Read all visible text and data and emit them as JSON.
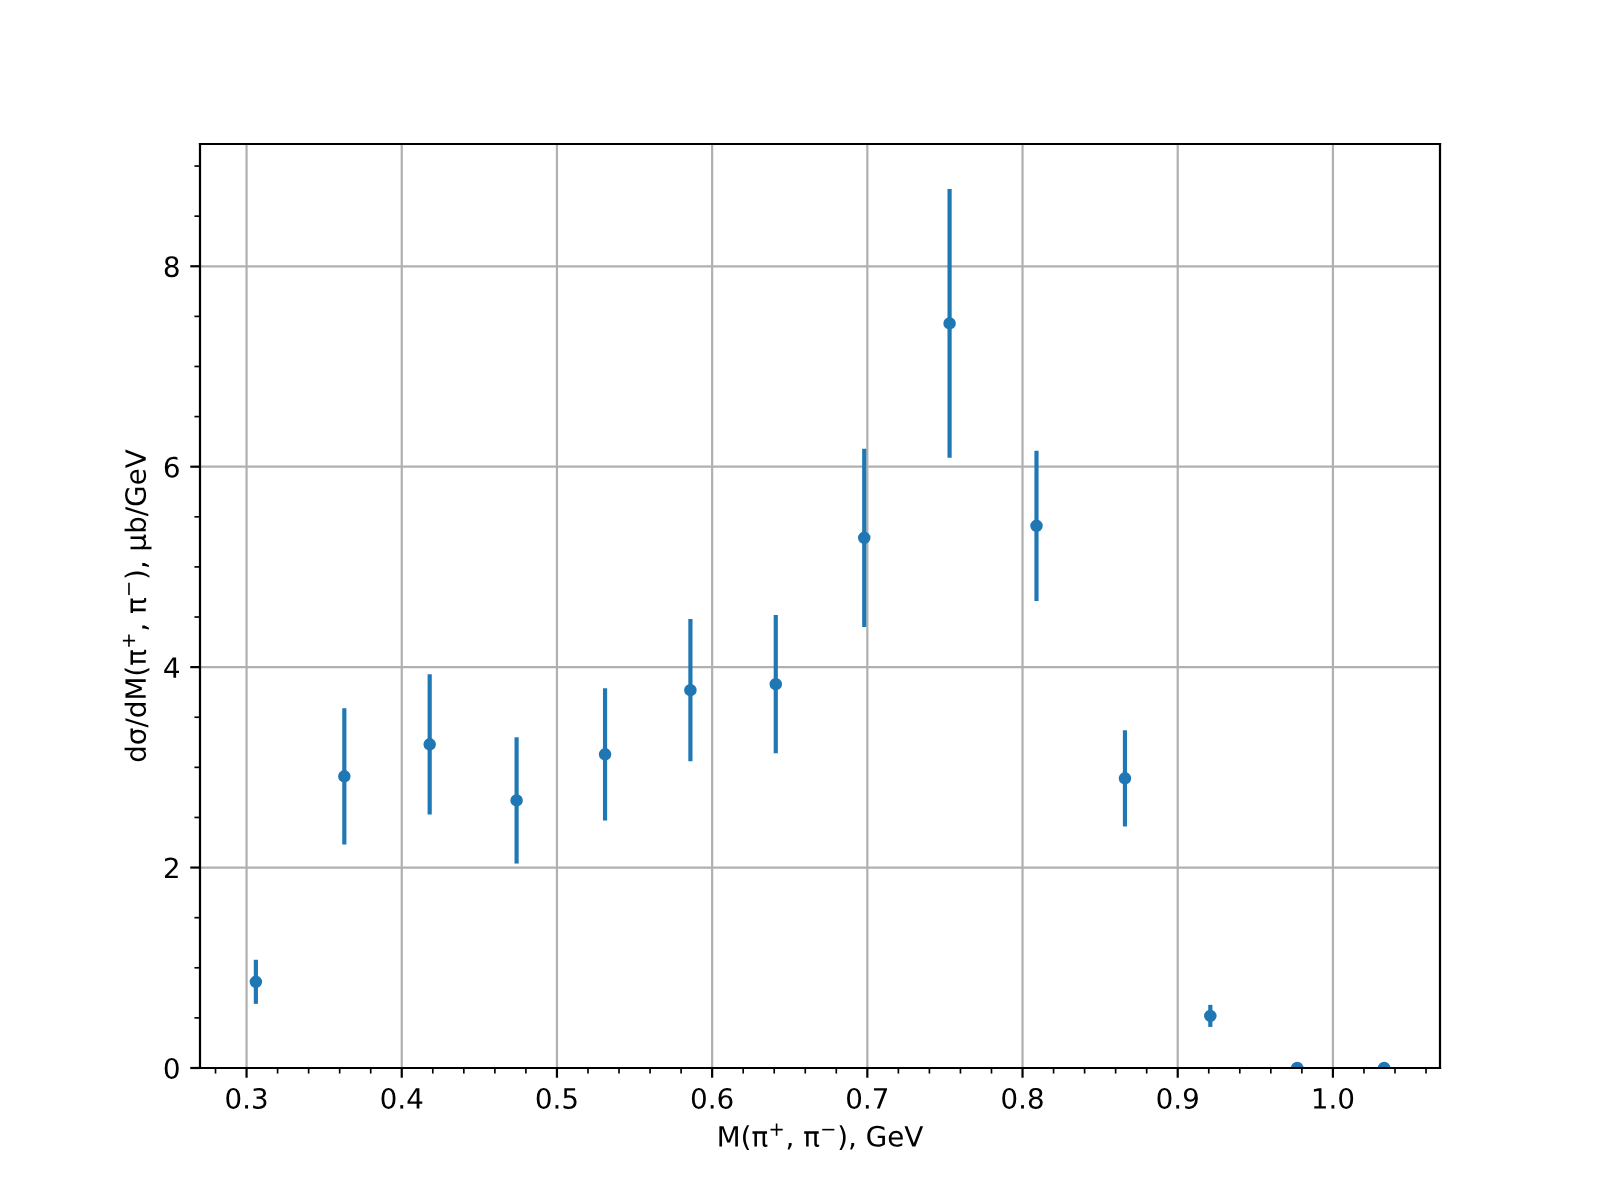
{
  "chart_data": {
    "type": "scatter",
    "xlabel": "M(π$^{+}$, π$^{−}$), GeV",
    "ylabel": "dσ/dM(π$^{+}$, π$^{−}$), μb/GeV",
    "x": [
      0.306,
      0.363,
      0.418,
      0.474,
      0.531,
      0.586,
      0.641,
      0.698,
      0.753,
      0.809,
      0.866,
      0.921,
      0.977,
      1.033
    ],
    "series": [
      {
        "color": "#1f77b4",
        "values": [
          0.86,
          2.91,
          3.23,
          2.67,
          3.13,
          3.77,
          3.83,
          5.29,
          7.43,
          5.41,
          2.89,
          0.52,
          0.0,
          0.0
        ],
        "errors": [
          0.22,
          0.68,
          0.7,
          0.63,
          0.66,
          0.71,
          0.69,
          0.89,
          1.34,
          0.75,
          0.48,
          0.11,
          0.0,
          0.0
        ]
      }
    ],
    "marker": "circle",
    "grid": true,
    "xlim": [
      0.27,
      1.069
    ],
    "ylim": [
      0,
      9.22
    ],
    "xticks": [
      {
        "value": 0.28,
        "label": null
      },
      0.3,
      {
        "value": 0.32,
        "label": null
      },
      {
        "value": 0.34,
        "label": null
      },
      {
        "value": 0.36,
        "label": null
      },
      {
        "value": 0.38,
        "label": null
      },
      0.4,
      {
        "value": 0.42,
        "label": null
      },
      {
        "value": 0.44,
        "label": null
      },
      {
        "value": 0.46,
        "label": null
      },
      {
        "value": 0.48,
        "label": null
      },
      0.5,
      {
        "value": 0.52,
        "label": null
      },
      {
        "value": 0.54,
        "label": null
      },
      {
        "value": 0.56,
        "label": null
      },
      {
        "value": 0.58,
        "label": null
      },
      0.6,
      {
        "value": 0.62,
        "label": null
      },
      {
        "value": 0.64,
        "label": null
      },
      {
        "value": 0.66,
        "label": null
      },
      {
        "value": 0.68,
        "label": null
      },
      0.7,
      {
        "value": 0.72,
        "label": null
      },
      {
        "value": 0.74,
        "label": null
      },
      {
        "value": 0.76,
        "label": null
      },
      {
        "value": 0.78,
        "label": null
      },
      0.8,
      {
        "value": 0.82,
        "label": null
      },
      {
        "value": 0.84,
        "label": null
      },
      {
        "value": 0.86,
        "label": null
      },
      {
        "value": 0.88,
        "label": null
      },
      0.9,
      {
        "value": 0.92,
        "label": null
      },
      {
        "value": 0.94,
        "label": null
      },
      {
        "value": 0.96,
        "label": null
      },
      {
        "value": 0.98,
        "label": null
      },
      {
        "value": 1.0,
        "label": "1.0"
      },
      {
        "value": 1.02,
        "label": null
      },
      {
        "value": 1.04,
        "label": null
      },
      {
        "value": 1.06,
        "label": null
      }
    ],
    "yticks": [
      0,
      {
        "value": 0.5,
        "label": null
      },
      {
        "value": 1,
        "label": null
      },
      {
        "value": 1.5,
        "label": null
      },
      2,
      {
        "value": 2.5,
        "label": null
      },
      {
        "value": 3,
        "label": null
      },
      {
        "value": 3.5,
        "label": null
      },
      4,
      {
        "value": 4.5,
        "label": null
      },
      {
        "value": 5,
        "label": null
      },
      {
        "value": 5.5,
        "label": null
      },
      6,
      {
        "value": 6.5,
        "label": null
      },
      {
        "value": 7,
        "label": null
      },
      {
        "value": 7.5,
        "label": null
      },
      8,
      {
        "value": 8.5,
        "label": null
      },
      {
        "value": 9,
        "label": null
      }
    ]
  }
}
